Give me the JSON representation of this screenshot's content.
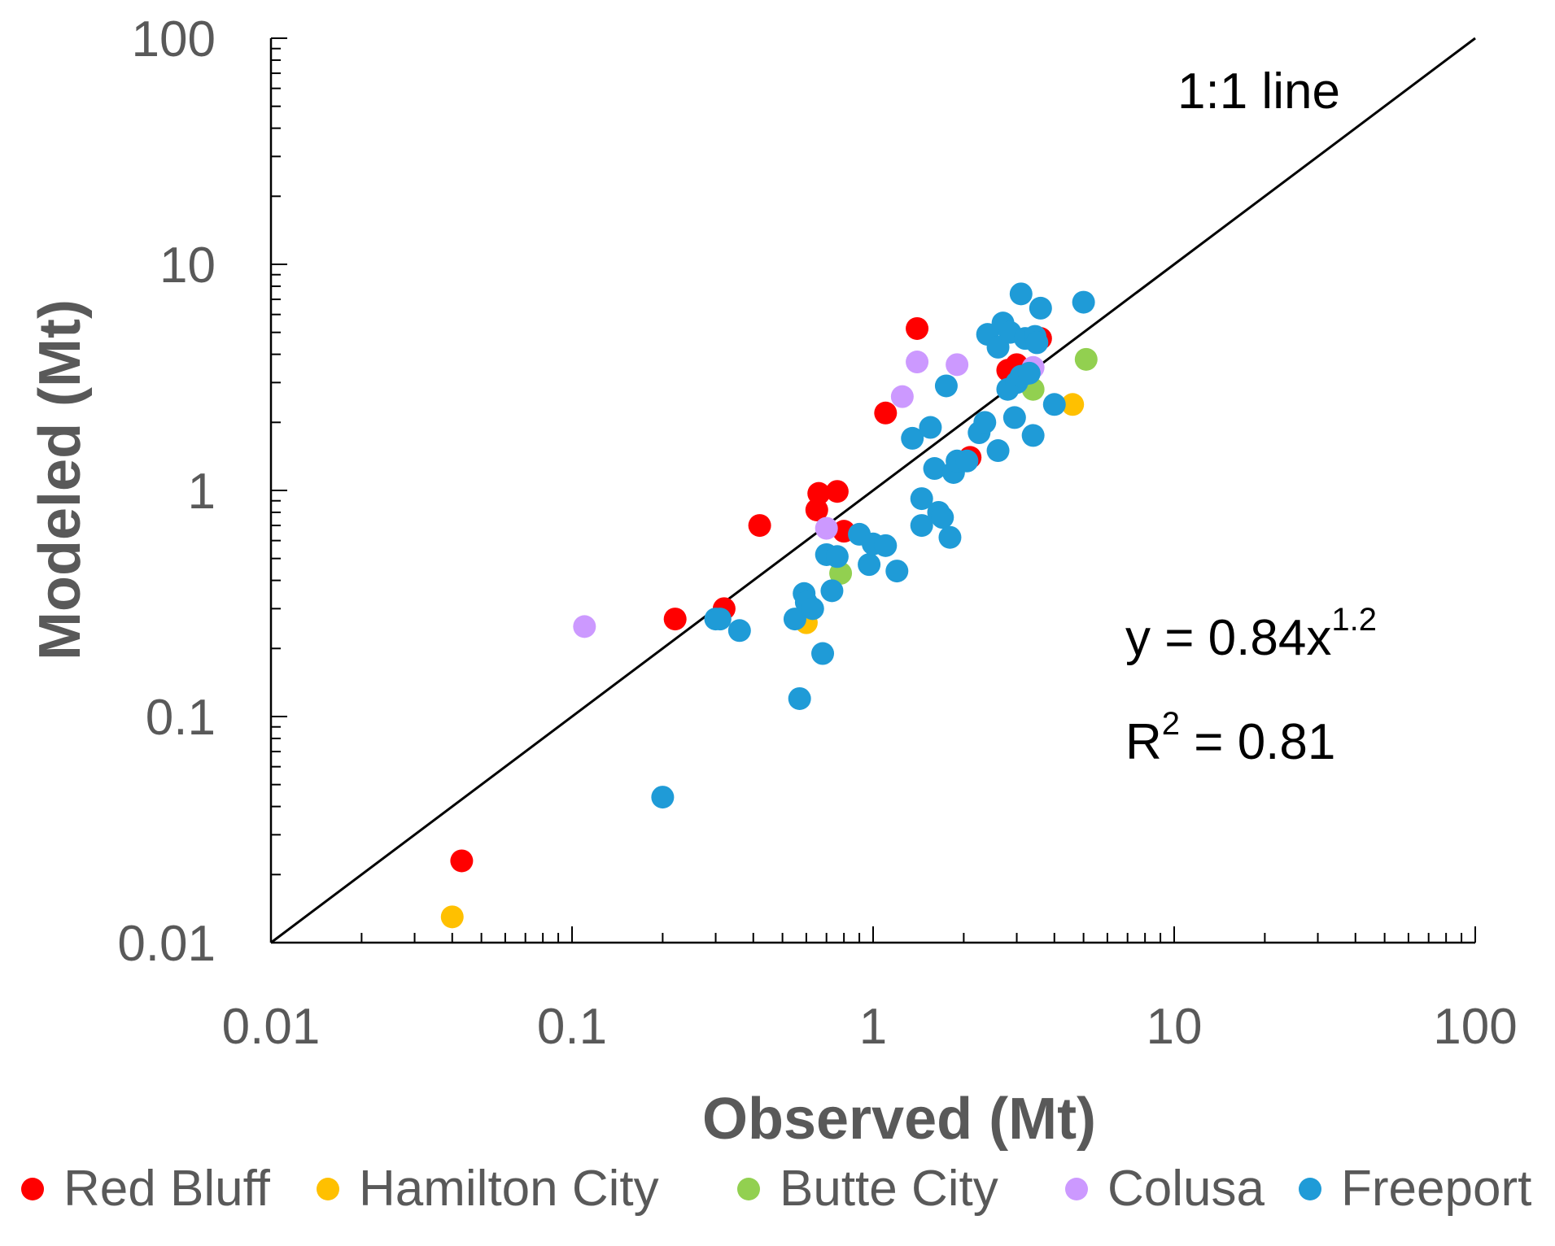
{
  "chart_data": {
    "type": "scatter",
    "title": "",
    "xlabel": "Observed (Mt)",
    "ylabel": "Modeled (Mt)",
    "xscale": "log",
    "yscale": "log",
    "xlim": [
      0.01,
      100
    ],
    "ylim": [
      0.01,
      100
    ],
    "xticks": [
      "0.01",
      "0.1",
      "1",
      "10",
      "100"
    ],
    "yticks": [
      "0.01",
      "0.1",
      "1",
      "10",
      "100"
    ],
    "grid": false,
    "legend_position": "bottom",
    "annotations": {
      "line_label": "1:1 line",
      "equation_base": "y = 0.84x",
      "equation_exp": "1.2",
      "r2_base": "R",
      "r2_exp": "2",
      "r2_value": " = 0.81"
    },
    "reference_line": {
      "label": "1:1 line",
      "from": [
        0.01,
        0.01
      ],
      "to": [
        100,
        100
      ],
      "color": "#000000"
    },
    "series": [
      {
        "name": "Red Bluff",
        "color": "#ff0000",
        "points": [
          [
            0.043,
            0.023
          ],
          [
            0.22,
            0.27
          ],
          [
            0.32,
            0.3
          ],
          [
            0.42,
            0.7
          ],
          [
            0.65,
            0.82
          ],
          [
            0.66,
            0.97
          ],
          [
            0.76,
            0.99
          ],
          [
            0.8,
            0.66
          ],
          [
            1.1,
            2.2
          ],
          [
            1.4,
            5.2
          ],
          [
            2.1,
            1.4
          ],
          [
            2.8,
            3.4
          ],
          [
            3.0,
            3.6
          ],
          [
            3.6,
            4.7
          ]
        ]
      },
      {
        "name": "Hamilton City",
        "color": "#ffc000",
        "points": [
          [
            0.04,
            0.013
          ],
          [
            0.6,
            0.26
          ],
          [
            4.6,
            2.4
          ]
        ]
      },
      {
        "name": "Butte City",
        "color": "#92d050",
        "points": [
          [
            0.78,
            0.43
          ],
          [
            3.4,
            2.8
          ],
          [
            5.1,
            3.8
          ]
        ]
      },
      {
        "name": "Colusa",
        "color": "#cc99ff",
        "points": [
          [
            0.11,
            0.25
          ],
          [
            0.7,
            0.68
          ],
          [
            1.25,
            2.6
          ],
          [
            1.4,
            3.7
          ],
          [
            1.9,
            3.6
          ],
          [
            3.4,
            3.5
          ]
        ]
      },
      {
        "name": "Freeport",
        "color": "#1f9bd7",
        "points": [
          [
            0.2,
            0.044
          ],
          [
            0.3,
            0.27
          ],
          [
            0.31,
            0.27
          ],
          [
            0.36,
            0.24
          ],
          [
            0.55,
            0.27
          ],
          [
            0.57,
            0.12
          ],
          [
            0.59,
            0.35
          ],
          [
            0.6,
            0.32
          ],
          [
            0.63,
            0.3
          ],
          [
            0.68,
            0.19
          ],
          [
            0.7,
            0.52
          ],
          [
            0.73,
            0.36
          ],
          [
            0.76,
            0.51
          ],
          [
            0.9,
            0.64
          ],
          [
            0.97,
            0.47
          ],
          [
            1.0,
            0.58
          ],
          [
            1.1,
            0.57
          ],
          [
            1.2,
            0.44
          ],
          [
            1.35,
            1.7
          ],
          [
            1.45,
            0.92
          ],
          [
            1.45,
            0.7
          ],
          [
            1.55,
            1.9
          ],
          [
            1.6,
            1.25
          ],
          [
            1.65,
            0.8
          ],
          [
            1.7,
            0.76
          ],
          [
            1.75,
            2.9
          ],
          [
            1.8,
            0.62
          ],
          [
            1.85,
            1.2
          ],
          [
            1.9,
            1.35
          ],
          [
            2.05,
            1.35
          ],
          [
            2.25,
            1.8
          ],
          [
            2.35,
            2.0
          ],
          [
            2.4,
            4.9
          ],
          [
            2.6,
            1.5
          ],
          [
            2.6,
            4.3
          ],
          [
            2.7,
            5.5
          ],
          [
            2.8,
            2.8
          ],
          [
            2.85,
            5.0
          ],
          [
            2.95,
            2.1
          ],
          [
            3.0,
            3.0
          ],
          [
            3.1,
            3.2
          ],
          [
            3.1,
            7.4
          ],
          [
            3.2,
            4.7
          ],
          [
            3.3,
            3.3
          ],
          [
            3.4,
            1.75
          ],
          [
            3.45,
            4.8
          ],
          [
            3.5,
            4.5
          ],
          [
            3.6,
            6.4
          ],
          [
            4.0,
            2.4
          ],
          [
            5.0,
            6.8
          ]
        ]
      }
    ]
  }
}
